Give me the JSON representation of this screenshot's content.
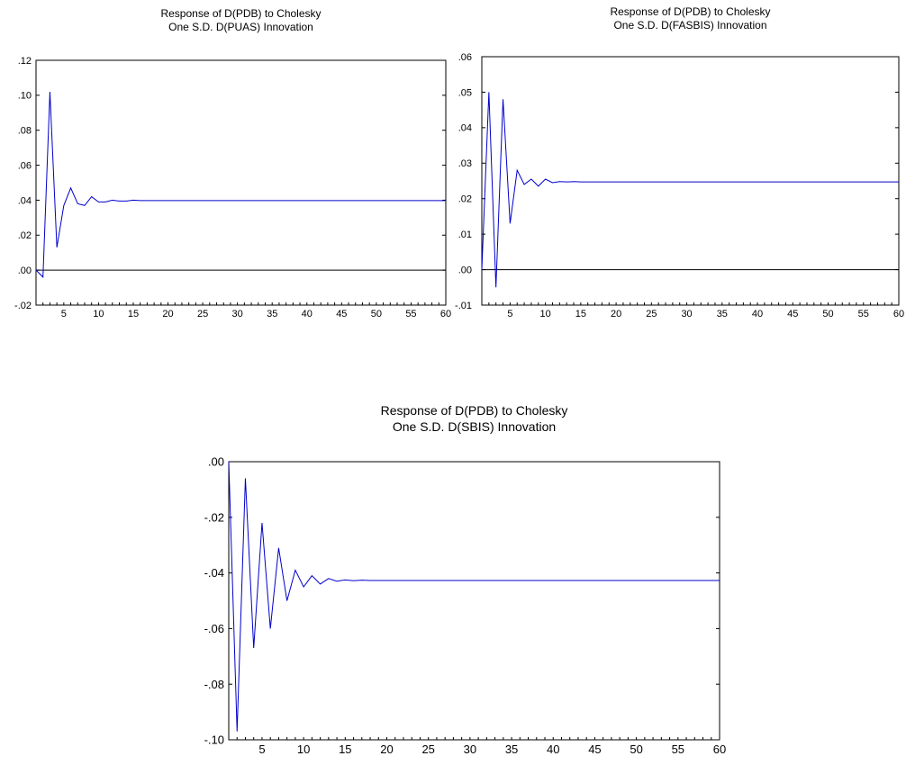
{
  "chart_data": [
    {
      "type": "line",
      "title": "Response of D(PDB) to Cholesky",
      "subtitle": "One S.D. D(PUAS) Innovation",
      "xlim": [
        1,
        60
      ],
      "ylim": [
        -0.02,
        0.12
      ],
      "x_ticks": [
        5,
        10,
        15,
        20,
        25,
        30,
        35,
        40,
        45,
        50,
        55,
        60
      ],
      "y_ticks": [
        -0.02,
        0.0,
        0.02,
        0.04,
        0.06,
        0.08,
        0.1,
        0.12
      ],
      "y_tick_labels": [
        "-.02",
        ".00",
        ".02",
        ".04",
        ".06",
        ".08",
        ".10",
        ".12"
      ],
      "zero_line": true,
      "series_color": "#0000CC",
      "series": [
        {
          "values": [
            0.0,
            -0.004,
            0.102,
            0.013,
            0.037,
            0.047,
            0.038,
            0.037,
            0.042,
            0.039,
            0.039,
            0.04,
            0.0395,
            0.0395,
            0.04,
            0.0398,
            0.0398,
            0.0398,
            0.0398,
            0.0398,
            0.0398,
            0.0398,
            0.0398,
            0.0398,
            0.0398,
            0.0398,
            0.0398,
            0.0398,
            0.0398,
            0.0398,
            0.0398,
            0.0398,
            0.0398,
            0.0398,
            0.0398,
            0.0398,
            0.0398,
            0.0398,
            0.0398,
            0.0398,
            0.0398,
            0.0398,
            0.0398,
            0.0398,
            0.0398,
            0.0398,
            0.0398,
            0.0398,
            0.0398,
            0.0398,
            0.0398,
            0.0398,
            0.0398,
            0.0398,
            0.0398,
            0.0398,
            0.0398,
            0.0398,
            0.0398,
            0.0398
          ]
        }
      ]
    },
    {
      "type": "line",
      "title": "Response of D(PDB) to Cholesky",
      "subtitle": "One S.D. D(FASBIS) Innovation",
      "xlim": [
        1,
        60
      ],
      "ylim": [
        -0.01,
        0.06
      ],
      "x_ticks": [
        5,
        10,
        15,
        20,
        25,
        30,
        35,
        40,
        45,
        50,
        55,
        60
      ],
      "y_ticks": [
        -0.01,
        0.0,
        0.01,
        0.02,
        0.03,
        0.04,
        0.05,
        0.06
      ],
      "y_tick_labels": [
        "-.01",
        ".00",
        ".01",
        ".02",
        ".03",
        ".04",
        ".05",
        ".06"
      ],
      "zero_line": true,
      "series_color": "#0000CC",
      "series": [
        {
          "values": [
            0.0,
            0.05,
            -0.005,
            0.048,
            0.013,
            0.028,
            0.024,
            0.0255,
            0.0235,
            0.0255,
            0.0245,
            0.0248,
            0.0247,
            0.0248,
            0.0247,
            0.0247,
            0.0247,
            0.0247,
            0.0247,
            0.0247,
            0.0247,
            0.0247,
            0.0247,
            0.0247,
            0.0247,
            0.0247,
            0.0247,
            0.0247,
            0.0247,
            0.0247,
            0.0247,
            0.0247,
            0.0247,
            0.0247,
            0.0247,
            0.0247,
            0.0247,
            0.0247,
            0.0247,
            0.0247,
            0.0247,
            0.0247,
            0.0247,
            0.0247,
            0.0247,
            0.0247,
            0.0247,
            0.0247,
            0.0247,
            0.0247,
            0.0247,
            0.0247,
            0.0247,
            0.0247,
            0.0247,
            0.0247,
            0.0247,
            0.0247,
            0.0247,
            0.0247
          ]
        }
      ]
    },
    {
      "type": "line",
      "title": "Response of D(PDB) to Cholesky",
      "subtitle": "One S.D. D(SBIS) Innovation",
      "xlim": [
        1,
        60
      ],
      "ylim": [
        -0.1,
        0.0
      ],
      "x_ticks": [
        5,
        10,
        15,
        20,
        25,
        30,
        35,
        40,
        45,
        50,
        55,
        60
      ],
      "y_ticks": [
        -0.1,
        -0.08,
        -0.06,
        -0.04,
        -0.02,
        0.0
      ],
      "y_tick_labels": [
        "-.10",
        "-.08",
        "-.06",
        "-.04",
        "-.02",
        ".00"
      ],
      "zero_line": false,
      "series_color": "#0000CC",
      "series": [
        {
          "values": [
            0.0,
            -0.097,
            -0.006,
            -0.067,
            -0.022,
            -0.06,
            -0.031,
            -0.05,
            -0.039,
            -0.045,
            -0.041,
            -0.044,
            -0.042,
            -0.043,
            -0.0425,
            -0.0428,
            -0.0426,
            -0.0427,
            -0.0427,
            -0.0427,
            -0.0427,
            -0.0427,
            -0.0427,
            -0.0427,
            -0.0427,
            -0.0427,
            -0.0427,
            -0.0427,
            -0.0427,
            -0.0427,
            -0.0427,
            -0.0427,
            -0.0427,
            -0.0427,
            -0.0427,
            -0.0427,
            -0.0427,
            -0.0427,
            -0.0427,
            -0.0427,
            -0.0427,
            -0.0427,
            -0.0427,
            -0.0427,
            -0.0427,
            -0.0427,
            -0.0427,
            -0.0427,
            -0.0427,
            -0.0427,
            -0.0427,
            -0.0427,
            -0.0427,
            -0.0427,
            -0.0427,
            -0.0427,
            -0.0427,
            -0.0427,
            -0.0427,
            -0.0427
          ]
        }
      ]
    }
  ]
}
